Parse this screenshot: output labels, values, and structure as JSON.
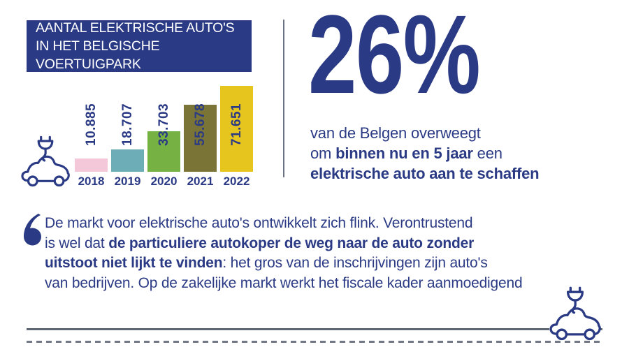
{
  "colors": {
    "brand_blue": "#2b3a84",
    "bar_pink": "#f4c8d8",
    "bar_teal": "#6cadb7",
    "bar_green": "#76b243",
    "bar_olive": "#7a7536",
    "bar_yellow": "#e6c51f",
    "solid_rule_gray": "#5d6774",
    "dashed_rule_gray": "#717784"
  },
  "header": {
    "title_line1": "AANTAL ELEKTRISCHE AUTO'S",
    "title_line2": "IN HET BELGISCHE VOERTUIGPARK"
  },
  "chart_data": {
    "type": "bar",
    "title": "Aantal elektrische auto's in het Belgische voertuigpark",
    "categories": [
      "2018",
      "2019",
      "2020",
      "2021",
      "2022"
    ],
    "values": [
      10885,
      18707,
      33703,
      55678,
      71651
    ],
    "value_labels": [
      "10.885",
      "18.707",
      "33.703",
      "55.678",
      "71.651"
    ],
    "bar_colors": [
      "#f4c8d8",
      "#6cadb7",
      "#76b243",
      "#7a7536",
      "#e6c51f"
    ],
    "xlabel": "",
    "ylabel": "",
    "ylim": [
      0,
      71651
    ],
    "grid": false,
    "legend": false,
    "value_label_rotation": -90
  },
  "stat": {
    "value": "26%",
    "line1": "van de Belgen overweegt",
    "line2_pre": "om ",
    "line2_bold": "binnen nu en 5 jaar",
    "line2_post": " een",
    "line3_bold": "elektrische auto aan te schaffen"
  },
  "quote": {
    "line1": "De markt voor elektrische auto's ontwikkelt zich flink. Verontrustend",
    "line2_regular": "is wel dat ",
    "line2_bold": "de particuliere autokoper de weg naar de auto zonder",
    "line3_bold": "uitstoot niet lijkt te vinden",
    "line3_regular": ": het gros van de inschrijvingen zijn auto's",
    "line4": "van bedrijven. Op de zakelijke markt werkt het fiscale kader aanmoedigend"
  }
}
